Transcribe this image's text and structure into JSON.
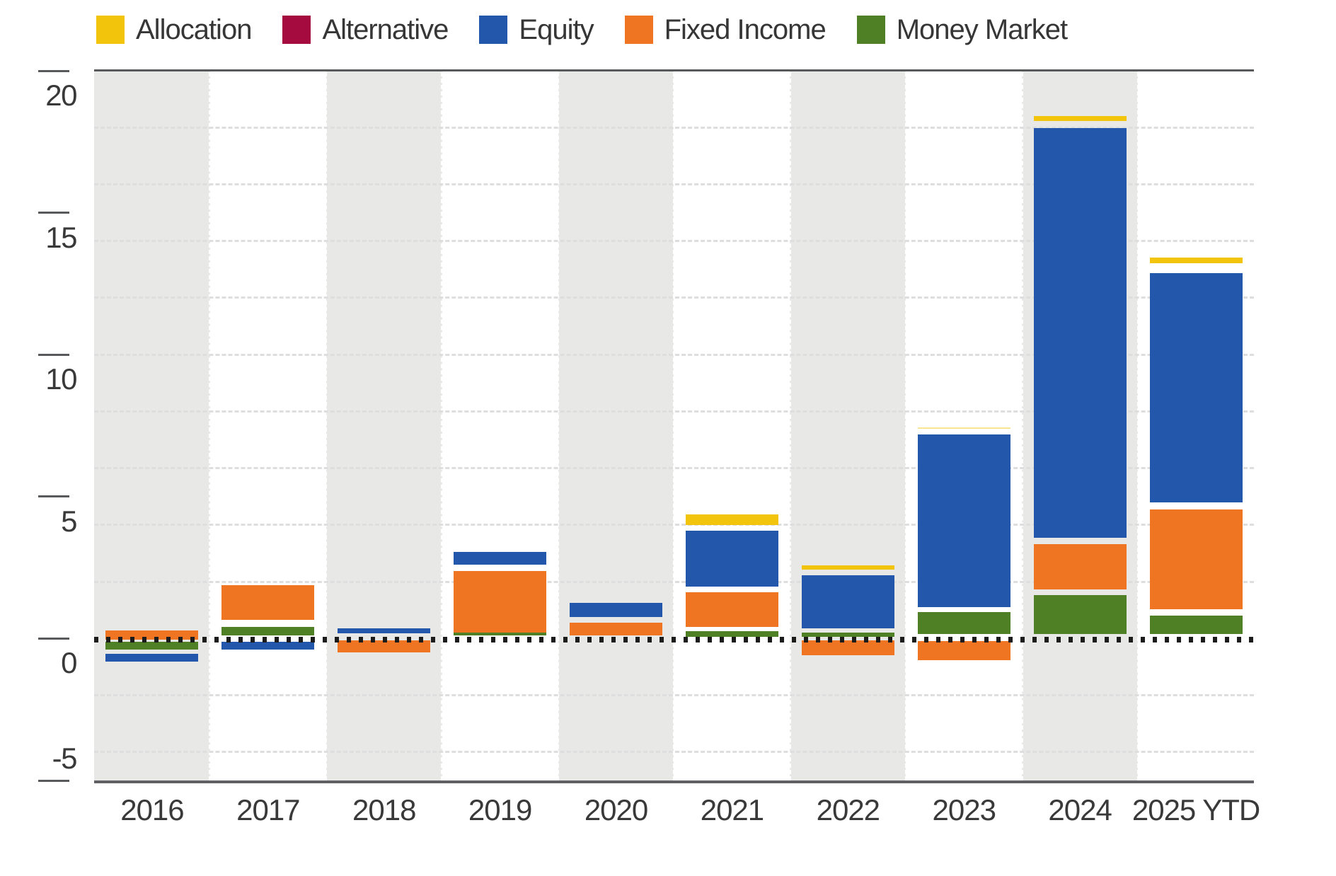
{
  "legend": {
    "items": [
      {
        "label": "Allocation",
        "color": "#F2C40C"
      },
      {
        "label": "Alternative",
        "color": "#A50B3E"
      },
      {
        "label": "Equity",
        "color": "#2357AC"
      },
      {
        "label": "Fixed Income",
        "color": "#EF7523"
      },
      {
        "label": "Money Market",
        "color": "#4F8026"
      }
    ]
  },
  "y_axis": {
    "tick_labels": [
      "20",
      "15",
      "10",
      "5",
      "0",
      "-5"
    ]
  },
  "x_axis": {
    "tick_labels": [
      "2016",
      "2017",
      "2018",
      "2019",
      "2020",
      "2021",
      "2022",
      "2023",
      "2024",
      "2025 YTD"
    ]
  },
  "colors": {
    "band": "#E8E8E7",
    "gridline": "#DEDEDE",
    "separator": "#FFFFFF",
    "axis_line": "#58595B",
    "bottom_axis_line": "#616165",
    "zero_line": "#1C1C1C",
    "label_text": "#39393A"
  },
  "chart_data": {
    "type": "bar",
    "stacked": true,
    "title": "",
    "categories": [
      "2016",
      "2017",
      "2018",
      "2019",
      "2020",
      "2021",
      "2022",
      "2023",
      "2024",
      "2025 YTD"
    ],
    "ylim": [
      -5,
      20.1
    ],
    "yticks": [
      20,
      15,
      10,
      5,
      0,
      -5
    ],
    "gridline_step": 2,
    "grid": "light dashed horizontal lines every 2 units; dotted black zero baseline",
    "legend_position": "top",
    "shaded_columns": [
      "2016",
      "2018",
      "2020",
      "2022",
      "2024"
    ],
    "series": [
      {
        "name": "Allocation",
        "color": "#F2C40C",
        "values": [
          0,
          0,
          0,
          0,
          0,
          0.4,
          0.2,
          0.1,
          0.2,
          0.25
        ]
      },
      {
        "name": "Alternative",
        "color": "#A50B3E",
        "values": [
          0,
          0,
          0,
          0,
          0,
          0,
          0,
          0,
          0,
          0
        ]
      },
      {
        "name": "Equity",
        "color": "#2357AC",
        "values": [
          -0.45,
          -0.4,
          0.3,
          0.6,
          0.6,
          2.1,
          2.0,
          6.2,
          14.6,
          8.2
        ]
      },
      {
        "name": "Fixed Income",
        "color": "#EF7523",
        "values": [
          0.35,
          1.3,
          -0.45,
          2.2,
          0.5,
          1.25,
          -0.55,
          -0.7,
          1.7,
          3.6
        ]
      },
      {
        "name": "Money Market",
        "color": "#4F8026",
        "values": [
          -0.35,
          0.4,
          0,
          0.15,
          0,
          0.25,
          0.15,
          0.85,
          1.5,
          0.7
        ]
      }
    ],
    "draw_segments": [
      {
        "year": "2016",
        "segments": [
          {
            "c": "Fixed Income",
            "lo": -0.05,
            "hi": 0.28
          },
          {
            "c": "Money Market",
            "lo": -0.4,
            "hi": -0.12
          },
          {
            "c": "Equity",
            "lo": -0.82,
            "hi": -0.55
          }
        ]
      },
      {
        "year": "2017",
        "segments": [
          {
            "c": "Fixed Income",
            "lo": 0.65,
            "hi": 1.87
          },
          {
            "c": "Money Market",
            "lo": 0.1,
            "hi": 0.42
          },
          {
            "c": "Equity",
            "lo": -0.4,
            "hi": -0.12
          }
        ]
      },
      {
        "year": "2018",
        "segments": [
          {
            "c": "Equity",
            "lo": 0.18,
            "hi": 0.35
          },
          {
            "c": "Fixed Income",
            "lo": -0.48,
            "hi": -0.07
          }
        ]
      },
      {
        "year": "2019",
        "segments": [
          {
            "c": "Equity",
            "lo": 2.59,
            "hi": 3.04
          },
          {
            "c": "Fixed Income",
            "lo": 0.22,
            "hi": 2.37
          },
          {
            "c": "Money Market",
            "lo": 0.1,
            "hi": 0.2
          }
        ]
      },
      {
        "year": "2020",
        "segments": [
          {
            "c": "Equity",
            "lo": 0.77,
            "hi": 1.25
          },
          {
            "c": "Fixed Income",
            "lo": 0.12,
            "hi": 0.57
          }
        ]
      },
      {
        "year": "2021",
        "segments": [
          {
            "c": "Allocation",
            "lo": 4.01,
            "hi": 4.36
          },
          {
            "c": "Equity",
            "lo": 1.82,
            "hi": 3.81
          },
          {
            "c": "Fixed Income",
            "lo": 0.42,
            "hi": 1.62
          },
          {
            "c": "Money Market",
            "lo": 0.07,
            "hi": 0.25
          }
        ]
      },
      {
        "year": "2022",
        "segments": [
          {
            "c": "Allocation",
            "lo": 2.42,
            "hi": 2.57
          },
          {
            "c": "Equity",
            "lo": 0.35,
            "hi": 2.24
          },
          {
            "c": "Money Market",
            "lo": 0.07,
            "hi": 0.2
          },
          {
            "c": "Fixed Income",
            "lo": -0.6,
            "hi": -0.07
          }
        ]
      },
      {
        "year": "2023",
        "segments": [
          {
            "c": "Allocation",
            "lo": 7.38,
            "hi": 7.44,
            "faint": true
          },
          {
            "c": "Equity",
            "lo": 1.1,
            "hi": 7.18
          },
          {
            "c": "Money Market",
            "lo": 0.15,
            "hi": 0.92
          },
          {
            "c": "Fixed Income",
            "lo": -0.77,
            "hi": -0.1
          }
        ]
      },
      {
        "year": "2024",
        "segments": [
          {
            "c": "Allocation",
            "lo": 18.22,
            "hi": 18.4
          },
          {
            "c": "Equity",
            "lo": 3.56,
            "hi": 17.97
          },
          {
            "c": "Fixed Income",
            "lo": 1.74,
            "hi": 3.32
          },
          {
            "c": "Money Market",
            "lo": 0.15,
            "hi": 1.52
          }
        ]
      },
      {
        "year": "2025 YTD",
        "segments": [
          {
            "c": "Allocation",
            "lo": 13.21,
            "hi": 13.41
          },
          {
            "c": "Equity",
            "lo": 4.79,
            "hi": 12.86
          },
          {
            "c": "Fixed Income",
            "lo": 1.02,
            "hi": 4.54
          },
          {
            "c": "Money Market",
            "lo": 0.15,
            "hi": 0.8
          }
        ]
      }
    ]
  }
}
